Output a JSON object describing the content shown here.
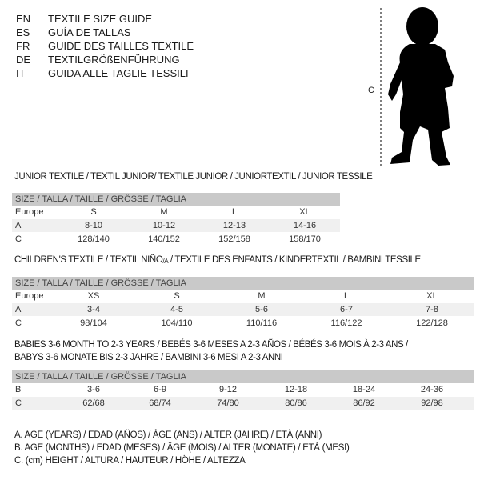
{
  "languages": [
    {
      "code": "EN",
      "name": "TEXTILE SIZE GUIDE"
    },
    {
      "code": "ES",
      "name": "GUÍA DE TALLAS"
    },
    {
      "code": "FR",
      "name": "GUIDE DES TAILLES TEXTILE"
    },
    {
      "code": "DE",
      "name": "TEXTILGRÖßENFÜHRUNG"
    },
    {
      "code": "IT",
      "name": "GUIDA ALLE TAGLIE TESSILI"
    }
  ],
  "figure": {
    "measure_label": "C"
  },
  "junior": {
    "title": "JUNIOR TEXTILE / TEXTIL JUNIOR/ TEXTILE JUNIOR / JUNIORTEXTIL / JUNIOR TESSILE",
    "header": "SIZE / TALLA / TAILLE / GRÖSSE / TAGLIA",
    "rows": [
      {
        "label": "Europe",
        "values": [
          "S",
          "M",
          "L",
          "XL"
        ]
      },
      {
        "label": "A",
        "values": [
          "8-10",
          "10-12",
          "12-13",
          "14-16"
        ]
      },
      {
        "label": "C",
        "values": [
          "128/140",
          "140/152",
          "152/158",
          "158/170"
        ]
      }
    ]
  },
  "children": {
    "title_pre": "CHILDREN'S TEXTILE / TEXTIL NIÑO",
    "title_sub": "/A",
    "title_post": " / TEXTILE DES ENFANTS / KINDERTEXTIL / BAMBINI TESSILE",
    "header": "SIZE / TALLA / TAILLE / GRÖSSE / TAGLIA",
    "rows": [
      {
        "label": "Europe",
        "values": [
          "XS",
          "S",
          "M",
          "L",
          "XL"
        ]
      },
      {
        "label": "A",
        "values": [
          "3-4",
          "4-5",
          "5-6",
          "6-7",
          "7-8"
        ]
      },
      {
        "label": "C",
        "values": [
          "98/104",
          "104/110",
          "110/116",
          "116/122",
          "122/128"
        ]
      }
    ]
  },
  "babies": {
    "title_line1": "BABIES 3-6 MONTH TO 2-3 YEARS / BEBÉS 3-6 MESES A 2-3 AÑOS / BÉBÉS 3-6 MOIS À 2-3 ANS /",
    "title_line2": "BABYS 3-6 MONATE BIS 2-3 JAHRE / BAMBINI 3-6 MESI A 2-3 ANNI",
    "header": "SIZE / TALLA / TAILLE / GRÖSSE / TAGLIA",
    "rows": [
      {
        "label": "B",
        "values": [
          "3-6",
          "6-9",
          "9-12",
          "12-18",
          "18-24",
          "24-36"
        ]
      },
      {
        "label": "C",
        "values": [
          "62/68",
          "68/74",
          "74/80",
          "80/86",
          "86/92",
          "92/98"
        ]
      }
    ]
  },
  "legend": [
    "A. AGE (YEARS) / EDAD (AÑOS) / ÂGE (ANS) / ALTER (JAHRE) / ETÀ (ANNI)",
    "B. AGE (MONTHS) / EDAD (MESES) / ÂGE (MOIS) / ALTER (MONATE) / ETÀ (MESI)",
    "C. (cm) HEIGHT / ALTURA / HAUTEUR / HÖHE / ALTEZZA"
  ]
}
